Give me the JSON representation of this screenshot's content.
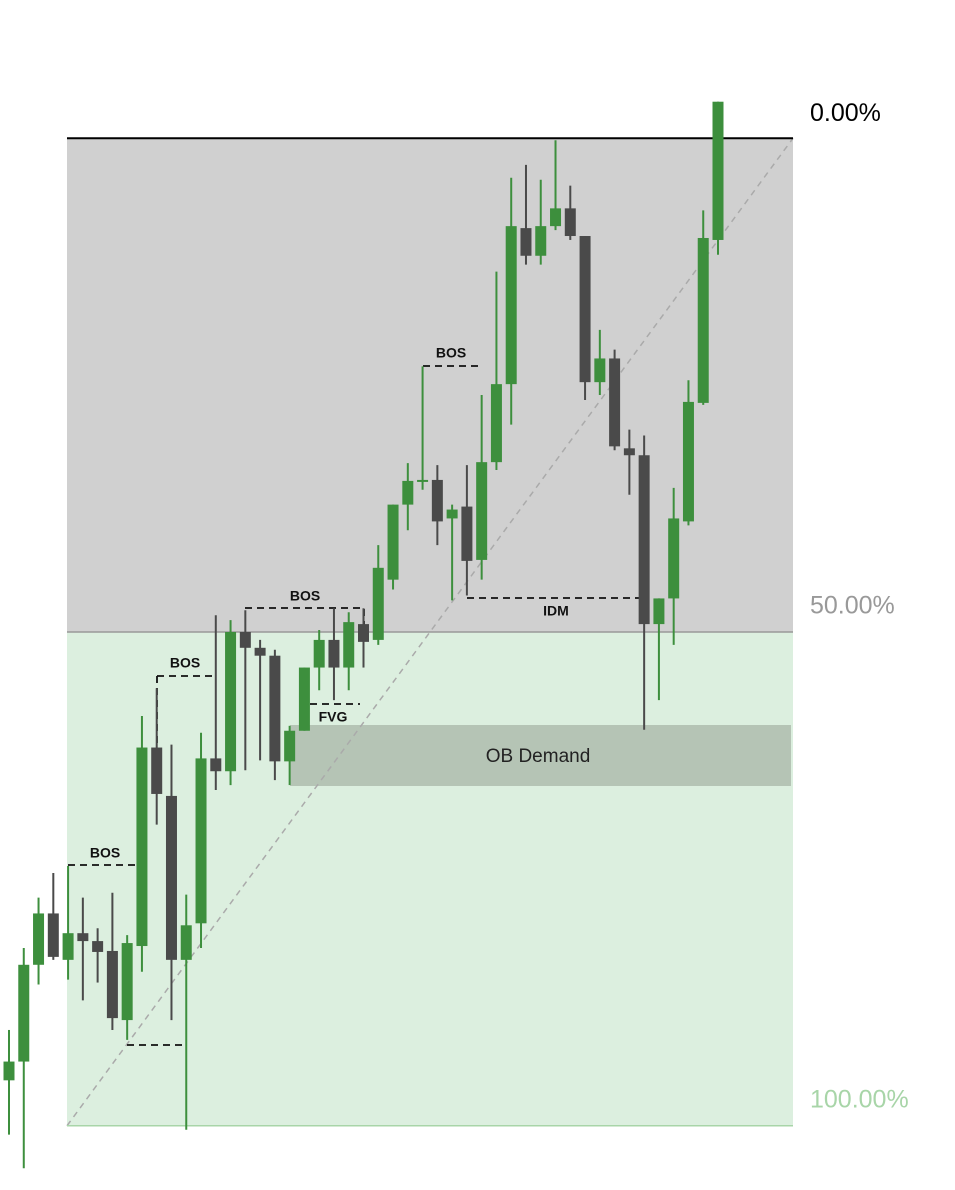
{
  "chart_data": {
    "type": "candlestick",
    "y_inverted": true,
    "ylim": [
      -14,
      106
    ],
    "up_color": "#3d8f3d",
    "down_color": "#4a4a4a",
    "fib_levels": [
      {
        "value": 0,
        "label": "0.00%",
        "color": "#000000"
      },
      {
        "value": 50,
        "label": "50.00%",
        "color": "#999999"
      },
      {
        "value": 100,
        "label": "100.00%",
        "color": "#a8d5a8"
      }
    ],
    "candles": [
      [
        95.4,
        90.3,
        100.9,
        93.5
      ],
      [
        93.5,
        82.0,
        104.3,
        83.7
      ],
      [
        83.7,
        76.9,
        85.7,
        78.5
      ],
      [
        78.5,
        74.4,
        83.2,
        82.9
      ],
      [
        83.2,
        73.7,
        85.2,
        80.5
      ],
      [
        80.5,
        76.9,
        87.3,
        81.3
      ],
      [
        81.3,
        80.0,
        85.5,
        82.4
      ],
      [
        82.3,
        76.4,
        90.3,
        89.1
      ],
      [
        89.3,
        80.7,
        91.3,
        81.5
      ],
      [
        81.8,
        58.5,
        84.4,
        61.7
      ],
      [
        61.7,
        55.7,
        69.5,
        66.4
      ],
      [
        66.6,
        61.4,
        89.3,
        83.2
      ],
      [
        83.2,
        76.6,
        100.4,
        79.7
      ],
      [
        79.5,
        60.2,
        82.0,
        62.8
      ],
      [
        62.8,
        48.3,
        66.0,
        64.1
      ],
      [
        64.1,
        48.8,
        65.5,
        50.0
      ],
      [
        50.0,
        47.8,
        64.0,
        51.6
      ],
      [
        51.6,
        50.8,
        63.0,
        52.4
      ],
      [
        52.4,
        51.8,
        65.0,
        63.1
      ],
      [
        63.1,
        59.5,
        65.5,
        60.0
      ],
      [
        60.0,
        53.6,
        60.0,
        53.6
      ],
      [
        53.6,
        49.8,
        55.9,
        50.8
      ],
      [
        50.8,
        47.6,
        56.9,
        53.6
      ],
      [
        53.6,
        48.0,
        55.9,
        49.0
      ],
      [
        49.2,
        47.6,
        53.6,
        51.0
      ],
      [
        50.8,
        41.2,
        51.3,
        43.5
      ],
      [
        44.7,
        37.1,
        45.7,
        37.1
      ],
      [
        37.1,
        32.9,
        39.7,
        34.7
      ],
      [
        34.8,
        23.1,
        35.6,
        34.6
      ],
      [
        34.6,
        33.1,
        41.2,
        38.8
      ],
      [
        38.5,
        37.1,
        46.8,
        37.6
      ],
      [
        37.3,
        33.1,
        46.3,
        42.8
      ],
      [
        42.7,
        26.0,
        44.7,
        32.8
      ],
      [
        32.8,
        13.5,
        33.6,
        24.9
      ],
      [
        24.9,
        4.0,
        29.0,
        8.9
      ],
      [
        9.1,
        2.7,
        12.8,
        11.9
      ],
      [
        11.9,
        4.2,
        12.8,
        8.9
      ],
      [
        8.9,
        0.2,
        9.3,
        7.1
      ],
      [
        7.1,
        4.8,
        10.3,
        9.9
      ],
      [
        9.9,
        9.9,
        26.5,
        24.7
      ],
      [
        24.7,
        19.4,
        26.0,
        22.3
      ],
      [
        22.3,
        21.4,
        31.6,
        31.2
      ],
      [
        31.4,
        29.5,
        36.1,
        32.1
      ],
      [
        32.1,
        30.1,
        59.9,
        49.2
      ],
      [
        49.2,
        46.6,
        56.9,
        46.6
      ],
      [
        46.6,
        35.4,
        51.3,
        38.5
      ],
      [
        38.8,
        24.5,
        39.2,
        26.7
      ],
      [
        26.8,
        7.3,
        27.0,
        10.1
      ],
      [
        10.3,
        -3.7,
        11.8,
        -3.7
      ]
    ],
    "annotations": [
      "BOS",
      "BOS",
      "BOS",
      "BOS",
      "FVG",
      "IDM",
      "OB Demand"
    ]
  }
}
